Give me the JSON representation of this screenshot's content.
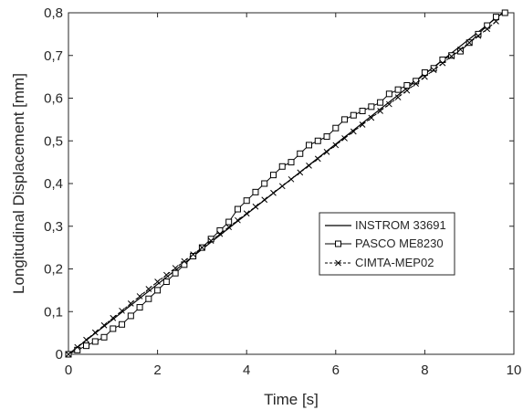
{
  "chart_data": {
    "type": "line",
    "title": "",
    "xlabel": "Time [s]",
    "ylabel": "Longitudinal Displacement [mm]",
    "xlim": [
      0,
      10
    ],
    "ylim": [
      0,
      0.8
    ],
    "x_ticks": [
      0,
      2,
      4,
      6,
      8,
      10
    ],
    "x_tick_labels": [
      "0",
      "2",
      "4",
      "6",
      "8",
      "10"
    ],
    "y_ticks": [
      0,
      0.1,
      0.2,
      0.3,
      0.4,
      0.5,
      0.6,
      0.7,
      0.8
    ],
    "y_tick_labels": [
      "0",
      "0,1",
      "0,2",
      "0,3",
      "0,4",
      "0,5",
      "0,6",
      "0,7",
      "0,8"
    ],
    "grid": false,
    "legend_position": "center-right",
    "series": [
      {
        "name": "INSTROM 33691",
        "marker": "none",
        "color": "#000000",
        "x": [
          0,
          9.75
        ],
        "y": [
          0,
          0.8
        ]
      },
      {
        "name": "PASCO ME8230",
        "marker": "square",
        "color": "#000000",
        "x": [
          0,
          0.2,
          0.4,
          0.6,
          0.8,
          1.0,
          1.2,
          1.4,
          1.6,
          1.8,
          2.0,
          2.2,
          2.4,
          2.6,
          2.8,
          3.0,
          3.2,
          3.4,
          3.6,
          3.8,
          4.0,
          4.2,
          4.4,
          4.6,
          4.8,
          5.0,
          5.2,
          5.4,
          5.6,
          5.8,
          6.0,
          6.2,
          6.4,
          6.6,
          6.8,
          7.0,
          7.2,
          7.4,
          7.6,
          7.8,
          8.0,
          8.2,
          8.4,
          8.6,
          8.8,
          9.0,
          9.2,
          9.4,
          9.6,
          9.8
        ],
        "y": [
          0,
          0.01,
          0.02,
          0.03,
          0.04,
          0.06,
          0.07,
          0.09,
          0.11,
          0.13,
          0.15,
          0.17,
          0.19,
          0.21,
          0.23,
          0.25,
          0.27,
          0.29,
          0.31,
          0.34,
          0.36,
          0.38,
          0.4,
          0.42,
          0.44,
          0.45,
          0.47,
          0.49,
          0.5,
          0.51,
          0.53,
          0.55,
          0.56,
          0.57,
          0.58,
          0.59,
          0.61,
          0.62,
          0.63,
          0.64,
          0.66,
          0.67,
          0.69,
          0.7,
          0.71,
          0.73,
          0.75,
          0.77,
          0.79,
          0.8
        ]
      },
      {
        "name": "CIMTA-MEP02",
        "marker": "x",
        "color": "#000000",
        "x": [
          0,
          0.2,
          0.4,
          0.6,
          0.8,
          1.0,
          1.2,
          1.4,
          1.6,
          1.8,
          2.0,
          2.2,
          2.4,
          2.6,
          2.8,
          3.0,
          3.2,
          3.4,
          3.6,
          3.8,
          4.0,
          4.2,
          4.4,
          4.6,
          4.8,
          5.0,
          5.2,
          5.4,
          5.6,
          5.8,
          6.0,
          6.2,
          6.4,
          6.6,
          6.8,
          7.0,
          7.2,
          7.4,
          7.6,
          7.8,
          8.0,
          8.2,
          8.4,
          8.6,
          8.8,
          9.0,
          9.2,
          9.4,
          9.6
        ],
        "y": [
          0,
          0.017,
          0.034,
          0.051,
          0.068,
          0.085,
          0.102,
          0.119,
          0.136,
          0.153,
          0.17,
          0.186,
          0.202,
          0.218,
          0.234,
          0.25,
          0.266,
          0.282,
          0.298,
          0.314,
          0.33,
          0.346,
          0.362,
          0.378,
          0.394,
          0.41,
          0.426,
          0.442,
          0.458,
          0.474,
          0.49,
          0.506,
          0.522,
          0.538,
          0.554,
          0.57,
          0.586,
          0.602,
          0.618,
          0.634,
          0.65,
          0.666,
          0.682,
          0.698,
          0.714,
          0.73,
          0.746,
          0.762,
          0.78
        ]
      }
    ]
  }
}
